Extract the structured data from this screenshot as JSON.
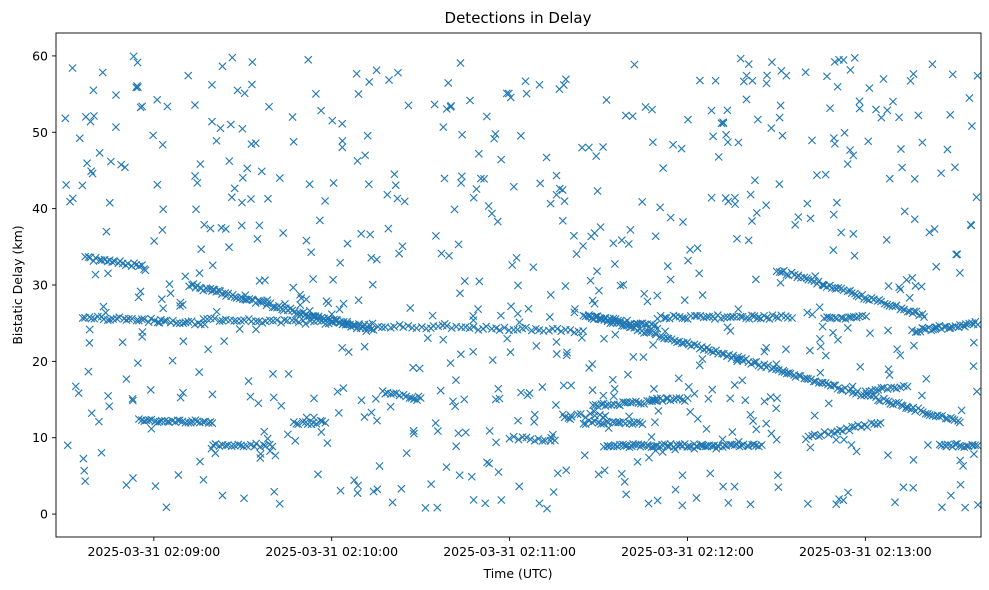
{
  "chart_data": {
    "type": "scatter",
    "title": "Detections in Delay",
    "xlabel": "Time (UTC)",
    "ylabel": "Bistatic Delay (km)",
    "x_unit": "seconds after 2025-03-31 02:08:00 UTC",
    "xlim": [
      27,
      339
    ],
    "ylim": [
      -3,
      63
    ],
    "x_ticks": [
      {
        "value": 60,
        "label": "2025-03-31 02:09:00"
      },
      {
        "value": 120,
        "label": "2025-03-31 02:10:00"
      },
      {
        "value": 180,
        "label": "2025-03-31 02:11:00"
      },
      {
        "value": 240,
        "label": "2025-03-31 02:12:00"
      },
      {
        "value": 300,
        "label": "2025-03-31 02:13:00"
      }
    ],
    "y_ticks": [
      0,
      10,
      20,
      30,
      40,
      50,
      60
    ],
    "marker": "x",
    "color": "#1f77b4",
    "grid": false,
    "tracks": [
      {
        "x_start": 37,
        "x_end": 56,
        "y_start": 33.5,
        "y_end": 32.5,
        "count": 22
      },
      {
        "x_start": 72,
        "x_end": 134,
        "y_start": 30.0,
        "y_end": 24.0,
        "count": 90
      },
      {
        "x_start": 207,
        "x_end": 332,
        "y_start": 26.0,
        "y_end": 12.0,
        "count": 150
      },
      {
        "x_start": 270,
        "x_end": 320,
        "y_start": 32.0,
        "y_end": 26.0,
        "count": 60
      },
      {
        "x_start": 36,
        "x_end": 77,
        "y_start": 25.8,
        "y_end": 25.0,
        "count": 40
      },
      {
        "x_start": 77,
        "x_end": 125,
        "y_start": 25.5,
        "y_end": 25.0,
        "count": 40
      },
      {
        "x_start": 125,
        "x_end": 205,
        "y_start": 24.8,
        "y_end": 24.0,
        "count": 55
      },
      {
        "x_start": 205,
        "x_end": 230,
        "y_start": 26.0,
        "y_end": 24.5,
        "count": 35
      },
      {
        "x_start": 230,
        "x_end": 275,
        "y_start": 25.8,
        "y_end": 25.8,
        "count": 45
      },
      {
        "x_start": 286,
        "x_end": 300,
        "y_start": 25.8,
        "y_end": 25.8,
        "count": 16
      },
      {
        "x_start": 316,
        "x_end": 338,
        "y_start": 24.0,
        "y_end": 25.0,
        "count": 30
      },
      {
        "x_start": 55,
        "x_end": 80,
        "y_start": 12.2,
        "y_end": 12.0,
        "count": 30
      },
      {
        "x_start": 80,
        "x_end": 100,
        "y_start": 9.0,
        "y_end": 9.0,
        "count": 20
      },
      {
        "x_start": 107,
        "x_end": 118,
        "y_start": 12.0,
        "y_end": 12.0,
        "count": 12
      },
      {
        "x_start": 137,
        "x_end": 150,
        "y_start": 16.0,
        "y_end": 15.0,
        "count": 14
      },
      {
        "x_start": 180,
        "x_end": 195,
        "y_start": 10.0,
        "y_end": 9.5,
        "count": 12
      },
      {
        "x_start": 212,
        "x_end": 245,
        "y_start": 9.0,
        "y_end": 9.0,
        "count": 45
      },
      {
        "x_start": 245,
        "x_end": 265,
        "y_start": 9.0,
        "y_end": 9.0,
        "count": 25
      },
      {
        "x_start": 208,
        "x_end": 230,
        "y_start": 14.2,
        "y_end": 14.8,
        "count": 25
      },
      {
        "x_start": 228,
        "x_end": 240,
        "y_start": 15.0,
        "y_end": 15.0,
        "count": 14
      },
      {
        "x_start": 205,
        "x_end": 225,
        "y_start": 12.0,
        "y_end": 12.0,
        "count": 22
      },
      {
        "x_start": 280,
        "x_end": 305,
        "y_start": 10.0,
        "y_end": 12.0,
        "count": 25
      },
      {
        "x_start": 300,
        "x_end": 314,
        "y_start": 16.2,
        "y_end": 16.6,
        "count": 14
      },
      {
        "x_start": 325,
        "x_end": 338,
        "y_start": 9.0,
        "y_end": 9.0,
        "count": 18
      },
      {
        "x_start": 198,
        "x_end": 212,
        "y_start": 12.8,
        "y_end": 13.0,
        "count": 10
      }
    ],
    "noise": {
      "count": 700,
      "x_range": [
        30,
        338
      ],
      "y_range": [
        0.5,
        60
      ],
      "seed": 7
    }
  }
}
